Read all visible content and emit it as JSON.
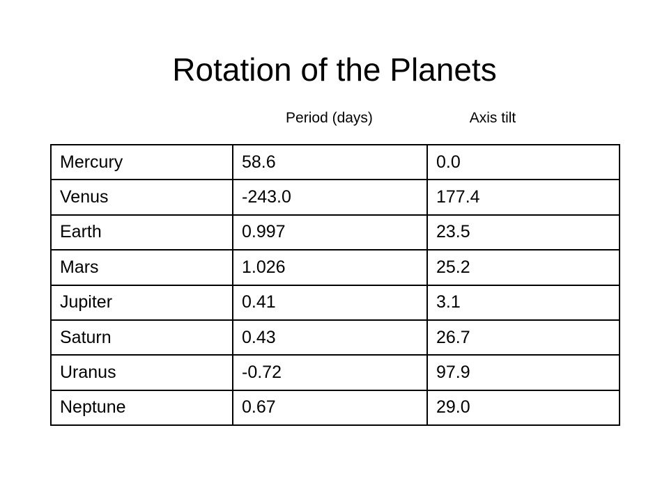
{
  "title": "Rotation of the Planets",
  "table": {
    "headers": [
      "Period (days)",
      "Axis tilt"
    ],
    "rows": [
      [
        "Mercury",
        "58.6",
        "0.0"
      ],
      [
        "Venus",
        "-243.0",
        "177.4"
      ],
      [
        "Earth",
        "0.997",
        "23.5"
      ],
      [
        "Mars",
        "1.026",
        "25.2"
      ],
      [
        "Jupiter",
        "0.41",
        "3.1"
      ],
      [
        "Saturn",
        "0.43",
        "26.7"
      ],
      [
        "Uranus",
        "-0.72",
        "97.9"
      ],
      [
        "Neptune",
        "0.67",
        "29.0"
      ]
    ]
  }
}
